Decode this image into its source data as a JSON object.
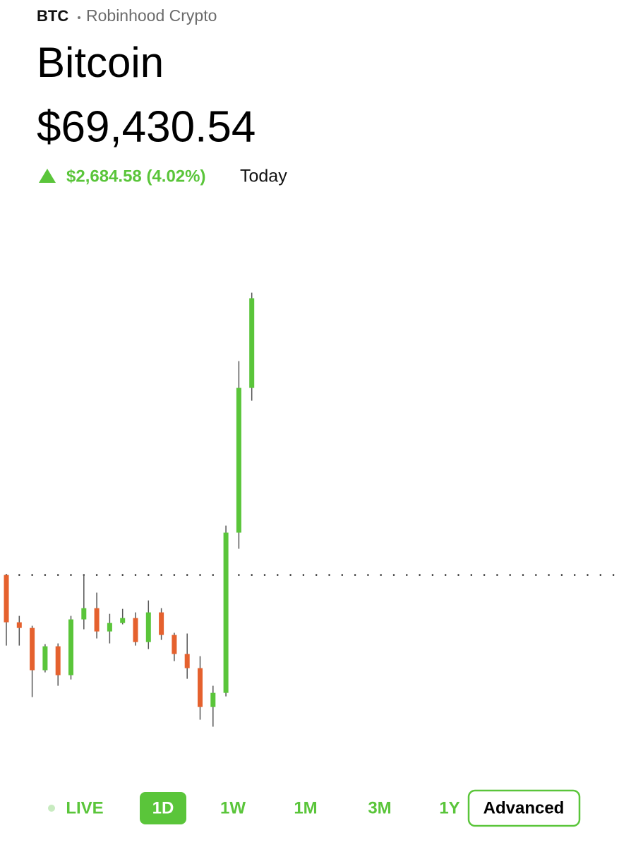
{
  "header": {
    "ticker": "BTC",
    "source": "Robinhood Crypto",
    "name": "Bitcoin",
    "price": "$69,430.54",
    "change": "$2,684.58 (4.02%)",
    "period": "Today"
  },
  "chart_data": {
    "type": "candlestick",
    "open": [
      66746,
      66287,
      66232,
      65822,
      66054,
      65774,
      66315,
      66424,
      66198,
      66280,
      66328,
      66095,
      66383,
      66164,
      65979,
      65842,
      65465,
      65602,
      67157,
      68561
    ],
    "high": [
      66746,
      66349,
      66253,
      66075,
      66082,
      66349,
      66746,
      66575,
      66369,
      66417,
      66383,
      66499,
      66424,
      66185,
      66178,
      65958,
      65671,
      67225,
      68821,
      69485
    ],
    "low": [
      66061,
      66061,
      65561,
      65801,
      65671,
      65732,
      66219,
      66130,
      66082,
      66267,
      66061,
      66027,
      66116,
      65910,
      65739,
      65342,
      65274,
      65568,
      67000,
      68437
    ],
    "close": [
      66287,
      66232,
      65822,
      66054,
      65774,
      66315,
      66424,
      66198,
      66280,
      66328,
      66095,
      66383,
      66164,
      65979,
      65842,
      65465,
      65602,
      67157,
      68561,
      69431
    ],
    "ylim": [
      64860,
      70270
    ],
    "reference_line": 66746,
    "up_color": "#5ac53a",
    "down_color": "#e5612e"
  },
  "controls": {
    "ranges": [
      "LIVE",
      "1D",
      "1W",
      "1M",
      "3M",
      "1Y"
    ],
    "selected": 1,
    "advanced": "Advanced"
  }
}
